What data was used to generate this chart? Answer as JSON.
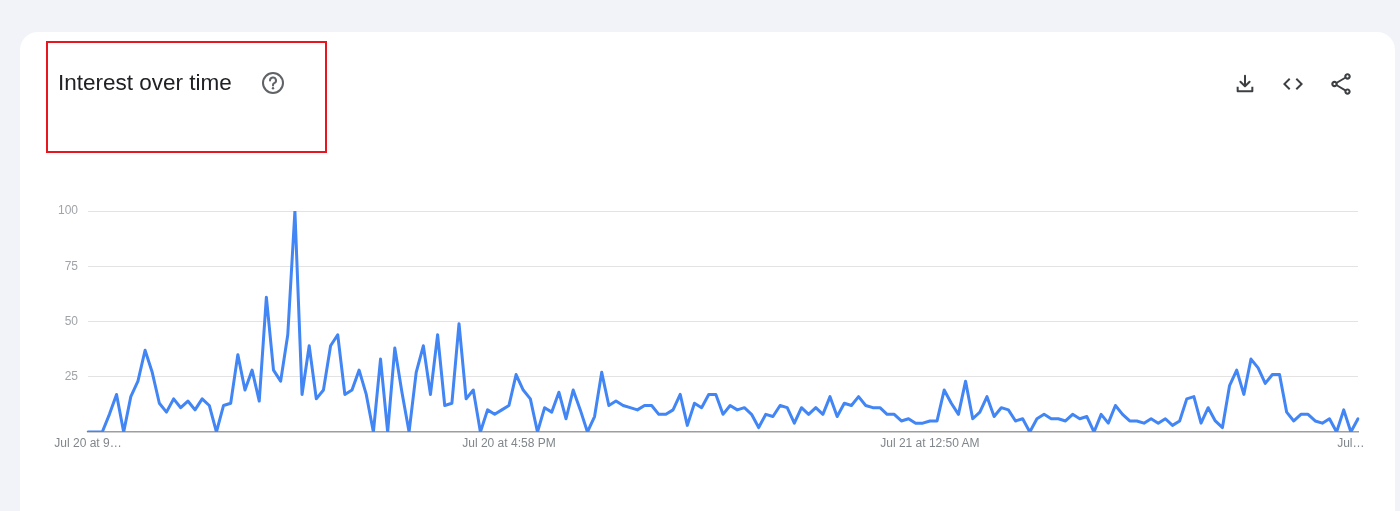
{
  "chart_data": {
    "type": "line",
    "title": "Interest over time",
    "categories": [
      "Jul 20 at 9…",
      null,
      null,
      null,
      null,
      null,
      null,
      null,
      null,
      null,
      null,
      null,
      null,
      null,
      null,
      null,
      null,
      null,
      null,
      null,
      null,
      null,
      null,
      null,
      null,
      null,
      null,
      null,
      null,
      null,
      null,
      null,
      null,
      null,
      null,
      null,
      null,
      null,
      null,
      null,
      null,
      null,
      null,
      null,
      null,
      null,
      null,
      null,
      null,
      null,
      null,
      null,
      null,
      null,
      null,
      null,
      null,
      null,
      null,
      "Jul 20 at 4:58 PM",
      null,
      null,
      null,
      null,
      null,
      null,
      null,
      null,
      null,
      null,
      null,
      null,
      null,
      null,
      null,
      null,
      null,
      null,
      null,
      null,
      null,
      null,
      null,
      null,
      null,
      null,
      null,
      null,
      null,
      null,
      null,
      null,
      null,
      null,
      null,
      null,
      null,
      null,
      null,
      null,
      null,
      null,
      null,
      null,
      null,
      null,
      null,
      null,
      null,
      null,
      null,
      null,
      null,
      null,
      null,
      null,
      null,
      null,
      "Jul 21 at 12:50 AM",
      null,
      null,
      null,
      null,
      null,
      null,
      null,
      null,
      null,
      null,
      null,
      null,
      null,
      null,
      null,
      null,
      null,
      null,
      null,
      null,
      null,
      null,
      null,
      null,
      null,
      null,
      null,
      null,
      null,
      null,
      null,
      null,
      null,
      null,
      null,
      null,
      null,
      null,
      null,
      null,
      null,
      null,
      null,
      null,
      null,
      null,
      null,
      null,
      null,
      null,
      null,
      null,
      null,
      null,
      null,
      null,
      null,
      null,
      "Jul…",
      null
    ],
    "values": [
      0,
      0,
      0,
      8,
      17,
      0,
      16,
      23,
      37,
      27,
      13,
      9,
      15,
      11,
      14,
      10,
      15,
      12,
      0,
      12,
      13,
      35,
      19,
      28,
      14,
      61,
      28,
      23,
      44,
      100,
      17,
      39,
      15,
      19,
      39,
      44,
      17,
      19,
      28,
      17,
      0,
      33,
      0,
      38,
      18,
      0,
      27,
      39,
      17,
      44,
      12,
      13,
      49,
      15,
      19,
      0,
      10,
      8,
      10,
      12,
      26,
      19,
      15,
      0,
      11,
      9,
      18,
      6,
      19,
      10,
      0,
      7,
      27,
      12,
      14,
      12,
      11,
      10,
      12,
      12,
      8,
      8,
      10,
      17,
      3,
      13,
      11,
      17,
      17,
      8,
      12,
      10,
      11,
      8,
      2,
      8,
      7,
      12,
      11,
      4,
      11,
      8,
      11,
      8,
      16,
      7,
      13,
      12,
      16,
      12,
      11,
      11,
      8,
      8,
      5,
      6,
      4,
      4,
      5,
      5,
      19,
      13,
      8,
      23,
      6,
      9,
      16,
      7,
      11,
      10,
      5,
      6,
      0,
      6,
      8,
      6,
      6,
      5,
      8,
      6,
      7,
      0,
      8,
      4,
      12,
      8,
      5,
      5,
      4,
      6,
      4,
      6,
      3,
      5,
      15,
      16,
      4,
      11,
      5,
      2,
      21,
      28,
      17,
      33,
      29,
      22,
      26,
      26,
      9,
      5,
      8,
      8,
      5,
      4,
      6,
      0,
      10,
      0,
      6
    ],
    "color": "#4285f4",
    "ylim": [
      0,
      100
    ],
    "yticks": [
      25,
      50,
      75,
      100
    ],
    "grid": "y"
  }
}
